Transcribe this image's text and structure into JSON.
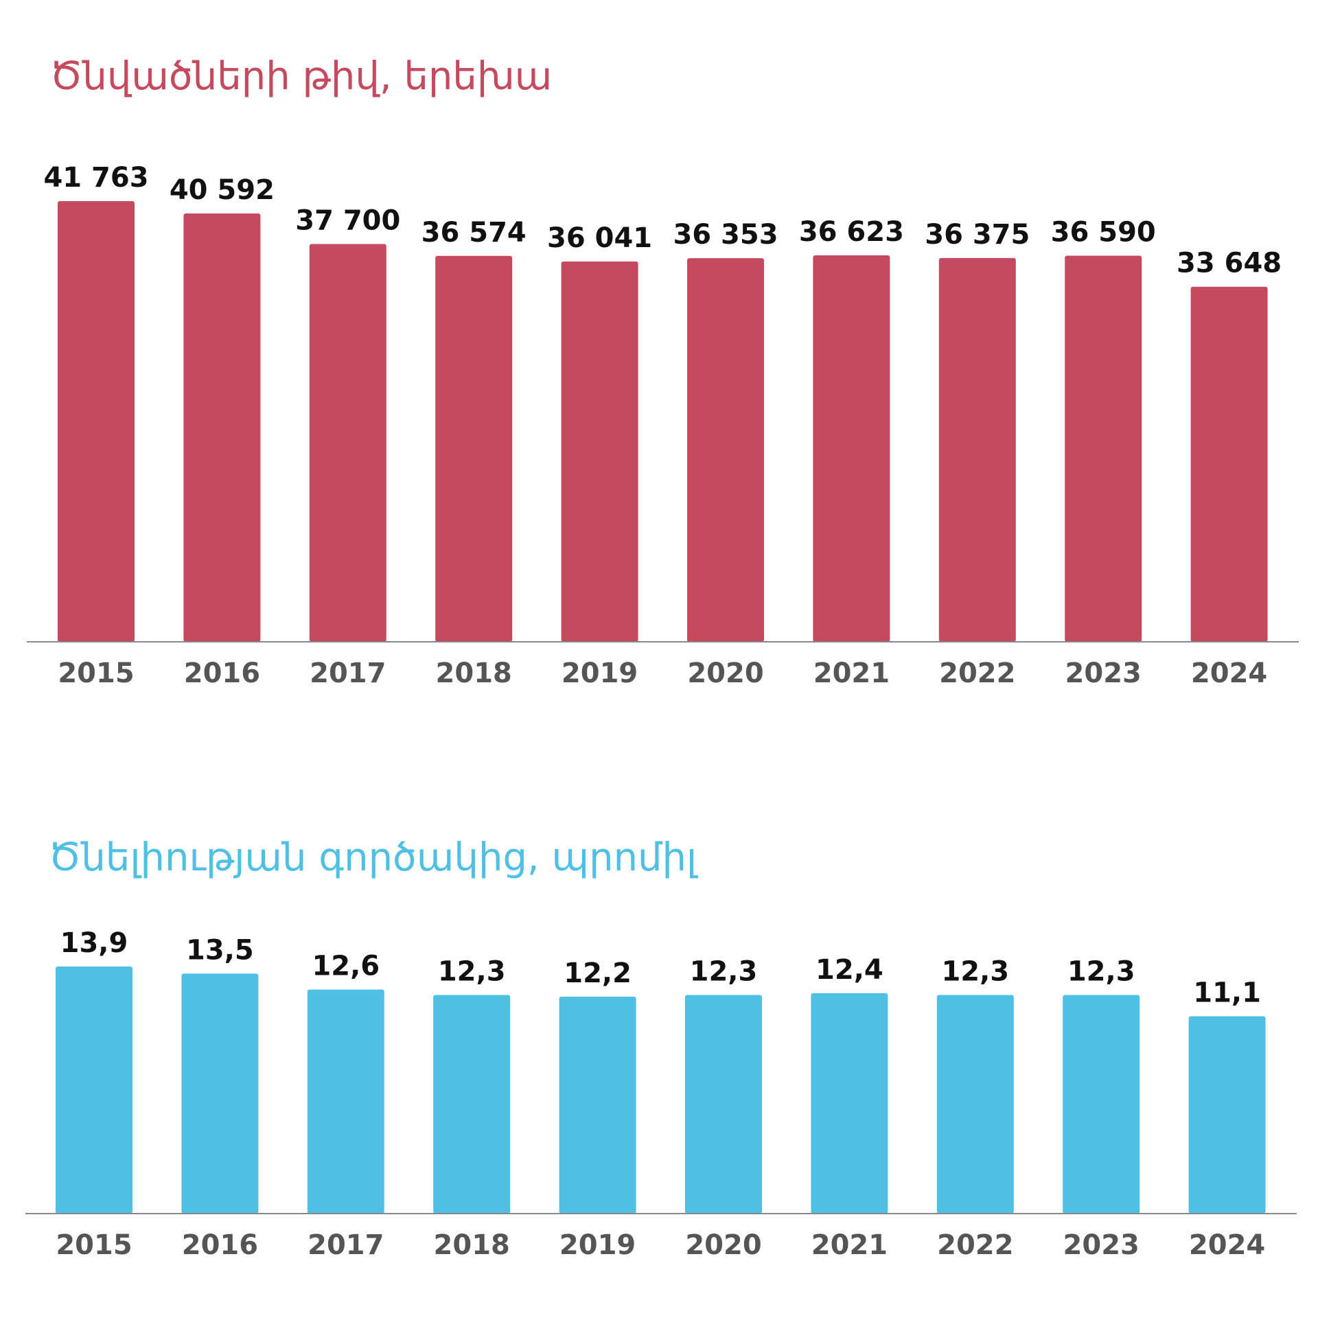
{
  "chart_data": [
    {
      "type": "bar",
      "title": "Ծնվածների թիվ, երեխա",
      "categories": [
        "2015",
        "2016",
        "2017",
        "2018",
        "2019",
        "2020",
        "2021",
        "2022",
        "2023",
        "2024"
      ],
      "values": [
        41763,
        40592,
        37700,
        36574,
        36041,
        36353,
        36623,
        36375,
        36590,
        33648
      ],
      "value_labels": [
        "41 763",
        "40 592",
        "37 700",
        "36 574",
        "36 041",
        "36 353",
        "36 623",
        "36 375",
        "36 590",
        "33 648"
      ],
      "color": "#c64a5e"
    },
    {
      "type": "bar",
      "title": "Ծնելիության գործակից, պրոմիլ",
      "categories": [
        "2015",
        "2016",
        "2017",
        "2018",
        "2019",
        "2020",
        "2021",
        "2022",
        "2023",
        "2024"
      ],
      "values": [
        13.9,
        13.5,
        12.6,
        12.3,
        12.2,
        12.3,
        12.4,
        12.3,
        12.3,
        11.1
      ],
      "value_labels": [
        "13,9",
        "13,5",
        "12,6",
        "12,3",
        "12,2",
        "12,3",
        "12,4",
        "12,3",
        "12,3",
        "11,1"
      ],
      "color": "#4fc0e4"
    }
  ]
}
